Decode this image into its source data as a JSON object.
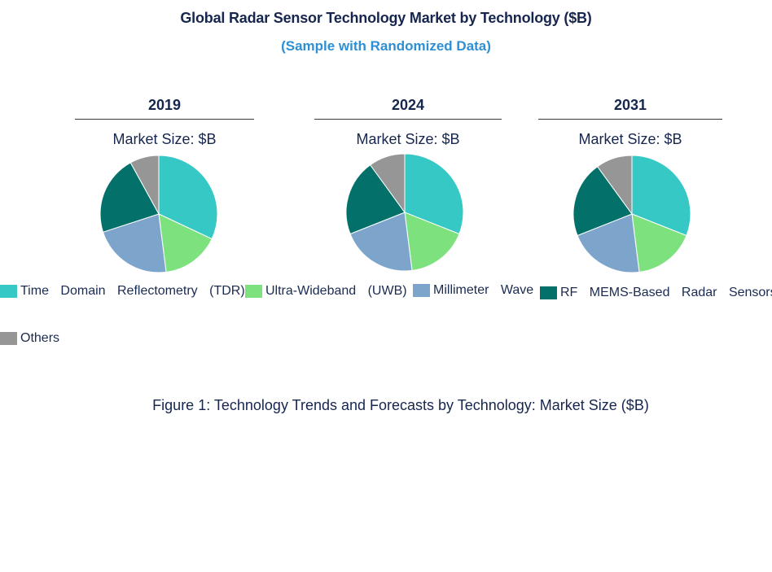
{
  "chart_data": {
    "type": "pie",
    "title": "Global Radar Sensor Technology Market by Technology ($B)",
    "subtitle": "(Sample with Randomized Data)",
    "caption": "Figure 1: Technology Trends and Forecasts by Technology: Market Size ($B)",
    "categories": [
      "Time Domain Reflectometry (TDR)",
      "Ultra-Wideband (UWB)",
      "Millimeter Wave",
      "RF MEMS-Based Radar Sensors",
      "Others"
    ],
    "colors": [
      "#36c8c4",
      "#7de27d",
      "#7da5cc",
      "#03716a",
      "#969696"
    ],
    "legend_placement": "bottom",
    "panels": [
      {
        "year": "2019",
        "size_label": "Market Size: $B",
        "values": [
          32,
          16,
          22,
          22,
          8
        ]
      },
      {
        "year": "2024",
        "size_label": "Market Size: $B",
        "values": [
          31,
          17,
          21,
          21,
          10
        ]
      },
      {
        "year": "2031",
        "size_label": "Market Size: $B",
        "values": [
          31,
          17,
          21,
          21,
          10
        ]
      }
    ]
  }
}
